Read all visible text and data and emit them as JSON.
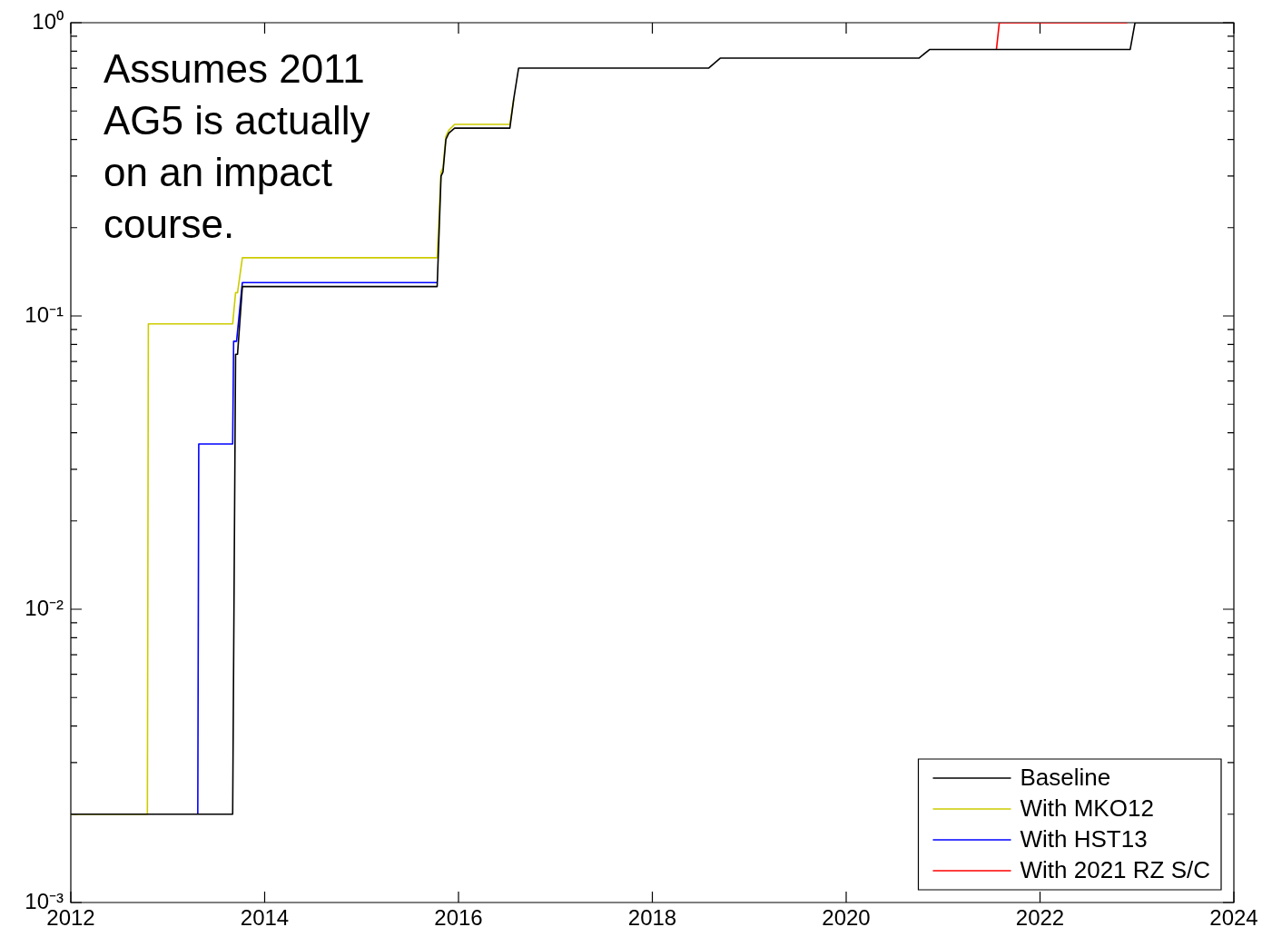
{
  "chart_data": {
    "type": "line",
    "log": "y",
    "legend": "bottom right",
    "marker": "none",
    "line_style": "solid",
    "annotations": [
      "Assumes 2011 AG5 is actually on an impact course."
    ],
    "xlim": [
      2012,
      2024
    ],
    "xticks": [
      2012,
      2014,
      2016,
      2018,
      2020,
      2022,
      2024
    ],
    "ylim": [
      0.001,
      1
    ],
    "yticks": [
      {
        "value": 0.001,
        "label": "10⁻³"
      },
      {
        "value": 0.002,
        "label": null
      },
      {
        "value": 0.003,
        "label": null
      },
      {
        "value": 0.004,
        "label": null
      },
      {
        "value": 0.005,
        "label": null
      },
      {
        "value": 0.006,
        "label": null
      },
      {
        "value": 0.007,
        "label": null
      },
      {
        "value": 0.008,
        "label": null
      },
      {
        "value": 0.009,
        "label": null
      },
      {
        "value": 0.01,
        "label": "10⁻²"
      },
      {
        "value": 0.02,
        "label": null
      },
      {
        "value": 0.03,
        "label": null
      },
      {
        "value": 0.04,
        "label": null
      },
      {
        "value": 0.05,
        "label": null
      },
      {
        "value": 0.06,
        "label": null
      },
      {
        "value": 0.07,
        "label": null
      },
      {
        "value": 0.08,
        "label": null
      },
      {
        "value": 0.09,
        "label": null
      },
      {
        "value": 0.1,
        "label": "10⁻¹"
      },
      {
        "value": 0.2,
        "label": null
      },
      {
        "value": 0.3,
        "label": null
      },
      {
        "value": 0.4,
        "label": null
      },
      {
        "value": 0.5,
        "label": null
      },
      {
        "value": 0.6,
        "label": null
      },
      {
        "value": 0.7,
        "label": null
      },
      {
        "value": 0.8,
        "label": null
      },
      {
        "value": 0.9,
        "label": null
      },
      {
        "value": 1,
        "label": "10⁰"
      }
    ],
    "series": [
      {
        "name": "Baseline",
        "color": "#000000",
        "x": [
          2012,
          2013.67,
          2013.7,
          2013.72,
          2013.77,
          2015.78,
          2015.82,
          2015.84,
          2015.87,
          2015.9,
          2015.96,
          2016.53,
          2016.57,
          2016.62,
          2018.58,
          2018.7,
          2020.75,
          2020.86,
          2022.93,
          2022.98,
          2024
        ],
        "values": [
          0.002,
          0.002,
          0.074,
          0.074,
          0.126,
          0.126,
          0.3,
          0.31,
          0.4,
          0.42,
          0.437,
          0.437,
          0.55,
          0.7,
          0.7,
          0.757,
          0.757,
          0.81,
          0.81,
          1,
          1
        ]
      },
      {
        "name": "With MKO12",
        "color": "#cccc00",
        "x": [
          2012,
          2012.79,
          2012.8,
          2013.67,
          2013.7,
          2013.72,
          2013.77,
          2015.78,
          2015.82,
          2015.84,
          2015.87,
          2015.9,
          2015.96,
          2016.53,
          2016.57
        ],
        "values": [
          0.002,
          0.002,
          0.094,
          0.094,
          0.12,
          0.12,
          0.158,
          0.158,
          0.31,
          0.32,
          0.41,
          0.43,
          0.45,
          0.45,
          0.55
        ]
      },
      {
        "name": "With HST13",
        "color": "#0000ff",
        "x": [
          2013.31,
          2013.32,
          2013.67,
          2013.68,
          2013.71,
          2013.77,
          2015.78
        ],
        "values": [
          0.002,
          0.0366,
          0.0366,
          0.082,
          0.082,
          0.13,
          0.13
        ]
      },
      {
        "name": "With 2021 RZ S/C",
        "color": "#ff0000",
        "x": [
          2021.55,
          2021.58,
          2022.9
        ],
        "values": [
          0.81,
          1,
          1
        ]
      }
    ]
  }
}
